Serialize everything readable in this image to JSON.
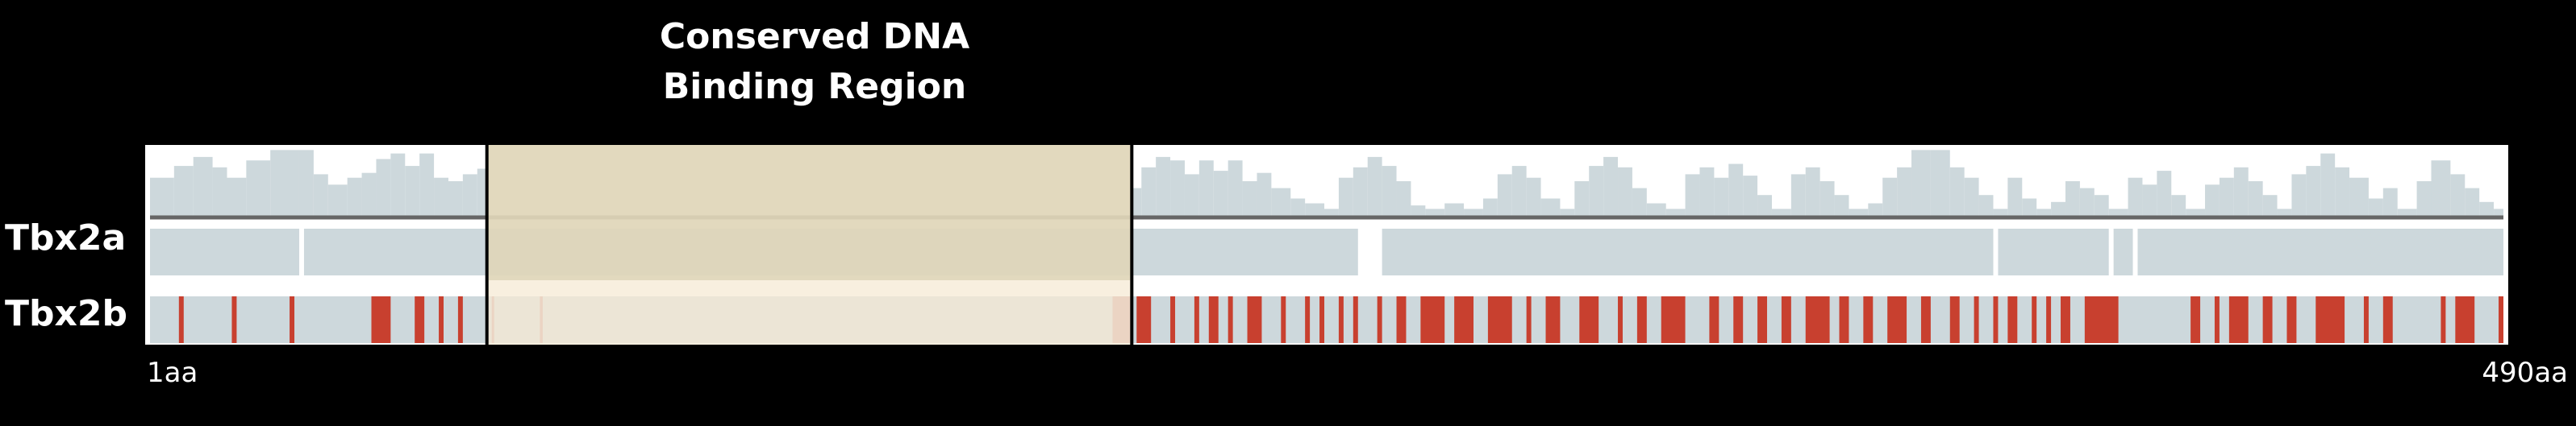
{
  "title": {
    "line1": "Conserved DNA",
    "line2": "Binding Region"
  },
  "tracks": {
    "tbx2a_label": "Tbx2a",
    "tbx2b_label": "Tbx2b"
  },
  "axis": {
    "start_label": "1aa",
    "end_label": "490aa",
    "start": 1,
    "end": 490
  },
  "region": {
    "start": 71,
    "end": 205
  },
  "colors": {
    "background": "#000000",
    "plot_bg": "#ffffff",
    "track": "#cdd8dc",
    "conservation": "#cdd8dc",
    "baseline": "#666666",
    "variant": "#c8402f",
    "region_overlay": "#dfd6b8",
    "region_track_b": "#f6ead4",
    "border": "#000000"
  },
  "conservation_profile": [
    [
      1,
      0.55
    ],
    [
      6,
      0.72
    ],
    [
      10,
      0.85
    ],
    [
      14,
      0.7
    ],
    [
      17,
      0.55
    ],
    [
      21,
      0.8
    ],
    [
      26,
      0.95
    ],
    [
      32,
      0.95
    ],
    [
      35,
      0.6
    ],
    [
      38,
      0.45
    ],
    [
      42,
      0.55
    ],
    [
      45,
      0.62
    ],
    [
      48,
      0.82
    ],
    [
      51,
      0.9
    ],
    [
      54,
      0.72
    ],
    [
      57,
      0.9
    ],
    [
      60,
      0.55
    ],
    [
      63,
      0.5
    ],
    [
      66,
      0.6
    ],
    [
      69,
      0.68
    ],
    [
      71,
      0.68
    ],
    [
      205,
      0.4
    ],
    [
      207,
      0.7
    ],
    [
      210,
      0.85
    ],
    [
      213,
      0.8
    ],
    [
      216,
      0.6
    ],
    [
      219,
      0.8
    ],
    [
      222,
      0.65
    ],
    [
      225,
      0.8
    ],
    [
      228,
      0.5
    ],
    [
      231,
      0.62
    ],
    [
      234,
      0.4
    ],
    [
      238,
      0.25
    ],
    [
      241,
      0.18
    ],
    [
      245,
      0.1
    ],
    [
      248,
      0.55
    ],
    [
      251,
      0.7
    ],
    [
      254,
      0.85
    ],
    [
      257,
      0.72
    ],
    [
      260,
      0.5
    ],
    [
      263,
      0.15
    ],
    [
      266,
      0.1
    ],
    [
      270,
      0.18
    ],
    [
      274,
      0.1
    ],
    [
      278,
      0.25
    ],
    [
      281,
      0.6
    ],
    [
      284,
      0.72
    ],
    [
      287,
      0.55
    ],
    [
      290,
      0.25
    ],
    [
      294,
      0.1
    ],
    [
      297,
      0.5
    ],
    [
      300,
      0.72
    ],
    [
      303,
      0.85
    ],
    [
      306,
      0.7
    ],
    [
      309,
      0.4
    ],
    [
      312,
      0.18
    ],
    [
      316,
      0.1
    ],
    [
      320,
      0.6
    ],
    [
      323,
      0.7
    ],
    [
      326,
      0.55
    ],
    [
      329,
      0.75
    ],
    [
      332,
      0.58
    ],
    [
      335,
      0.3
    ],
    [
      338,
      0.1
    ],
    [
      342,
      0.6
    ],
    [
      345,
      0.7
    ],
    [
      348,
      0.5
    ],
    [
      351,
      0.3
    ],
    [
      354,
      0.1
    ],
    [
      358,
      0.18
    ],
    [
      361,
      0.55
    ],
    [
      364,
      0.7
    ],
    [
      367,
      0.95
    ],
    [
      371,
      0.95
    ],
    [
      375,
      0.7
    ],
    [
      378,
      0.55
    ],
    [
      381,
      0.3
    ],
    [
      384,
      0.1
    ],
    [
      387,
      0.55
    ],
    [
      390,
      0.25
    ],
    [
      393,
      0.1
    ],
    [
      396,
      0.2
    ],
    [
      399,
      0.5
    ],
    [
      402,
      0.4
    ],
    [
      405,
      0.3
    ],
    [
      408,
      0.1
    ],
    [
      412,
      0.55
    ],
    [
      415,
      0.45
    ],
    [
      418,
      0.65
    ],
    [
      421,
      0.3
    ],
    [
      424,
      0.1
    ],
    [
      428,
      0.45
    ],
    [
      431,
      0.55
    ],
    [
      434,
      0.7
    ],
    [
      437,
      0.5
    ],
    [
      440,
      0.3
    ],
    [
      443,
      0.1
    ],
    [
      446,
      0.6
    ],
    [
      449,
      0.72
    ],
    [
      452,
      0.9
    ],
    [
      455,
      0.7
    ],
    [
      458,
      0.55
    ],
    [
      462,
      0.25
    ],
    [
      465,
      0.4
    ],
    [
      468,
      0.1
    ],
    [
      472,
      0.5
    ],
    [
      475,
      0.8
    ],
    [
      479,
      0.6
    ],
    [
      482,
      0.4
    ],
    [
      485,
      0.2
    ],
    [
      488,
      0.1
    ],
    [
      490,
      0.1
    ]
  ],
  "tbx2a_gaps": [
    [
      32,
      33
    ],
    [
      252,
      257
    ],
    [
      384,
      385
    ],
    [
      408,
      409
    ],
    [
      413,
      414
    ]
  ],
  "tbx2b_variants": [
    [
      7,
      8
    ],
    [
      18,
      19
    ],
    [
      30,
      31
    ],
    [
      47,
      51
    ],
    [
      56,
      58
    ],
    [
      61,
      62
    ],
    [
      65,
      66
    ],
    [
      72,
      72.5
    ],
    [
      82,
      82.6
    ],
    [
      201,
      205
    ],
    [
      206,
      209
    ],
    [
      213,
      214
    ],
    [
      218,
      219
    ],
    [
      221,
      223
    ],
    [
      225,
      226
    ],
    [
      229,
      232
    ],
    [
      236,
      237
    ],
    [
      241,
      242
    ],
    [
      244,
      245
    ],
    [
      248,
      249
    ],
    [
      251,
      252
    ],
    [
      256,
      257
    ],
    [
      260,
      262
    ],
    [
      265,
      270
    ],
    [
      272,
      276
    ],
    [
      279,
      284
    ],
    [
      287,
      288
    ],
    [
      291,
      294
    ],
    [
      298,
      302
    ],
    [
      306,
      307
    ],
    [
      310,
      312
    ],
    [
      315,
      320
    ],
    [
      325,
      327
    ],
    [
      330,
      332
    ],
    [
      335,
      337
    ],
    [
      340,
      342
    ],
    [
      345,
      350
    ],
    [
      352,
      354
    ],
    [
      357,
      359
    ],
    [
      362,
      366
    ],
    [
      369,
      371
    ],
    [
      375,
      377
    ],
    [
      380,
      381
    ],
    [
      384,
      385
    ],
    [
      387,
      389
    ],
    [
      392,
      393
    ],
    [
      395,
      396
    ],
    [
      398,
      400
    ],
    [
      403,
      410
    ],
    [
      425,
      427
    ],
    [
      430,
      431
    ],
    [
      433,
      437
    ],
    [
      440,
      442
    ],
    [
      445,
      447
    ],
    [
      451,
      457
    ],
    [
      461,
      462
    ],
    [
      465,
      467
    ],
    [
      477,
      478
    ],
    [
      480,
      484
    ],
    [
      489,
      490
    ]
  ]
}
